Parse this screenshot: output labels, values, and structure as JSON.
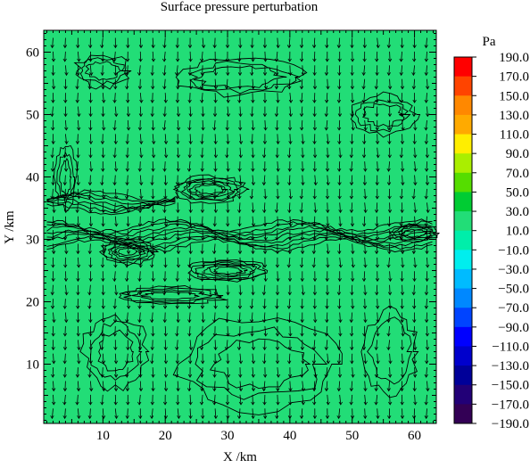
{
  "chart_data": {
    "type": "heatmap",
    "title": "Surface pressure perturbation",
    "xlabel": "X /km",
    "ylabel": "Y /km",
    "xlim": [
      0.5,
      63.5
    ],
    "ylim": [
      0.5,
      63.5
    ],
    "x_ticks": [
      10,
      20,
      30,
      40,
      50,
      60
    ],
    "y_ticks": [
      10,
      20,
      30,
      40,
      50,
      60
    ],
    "x_tick_labels": [
      "10",
      "20",
      "30",
      "40",
      "50",
      "60"
    ],
    "y_tick_labels": [
      "10",
      "20",
      "30",
      "40",
      "50",
      "60"
    ],
    "fill_value_range": [
      -10.0,
      10.0
    ],
    "fill_color": "#22dd77",
    "overlays": [
      "contour lines",
      "wind vectors"
    ],
    "colorbar": {
      "unit": "Pa",
      "min": -190.0,
      "max": 190.0,
      "tick_labels": [
        "190.0",
        "170.0",
        "150.0",
        "130.0",
        "110.0",
        "90.0",
        "70.0",
        "50.0",
        "30.0",
        "10.0",
        "−10.0",
        "−30.0",
        "−50.0",
        "−70.0",
        "−90.0",
        "−110.0",
        "−130.0",
        "−150.0",
        "−170.0",
        "−190.0"
      ],
      "colors_top_to_bottom": [
        "#ff0000",
        "#ff4400",
        "#ff8800",
        "#ffaa00",
        "#ffee00",
        "#aaee00",
        "#55dd00",
        "#00cc33",
        "#22dd77",
        "#00eeaa",
        "#00eeee",
        "#00bbff",
        "#0088ff",
        "#0044ff",
        "#0000ff",
        "#0000cc",
        "#000099",
        "#220077",
        "#330055"
      ]
    }
  }
}
